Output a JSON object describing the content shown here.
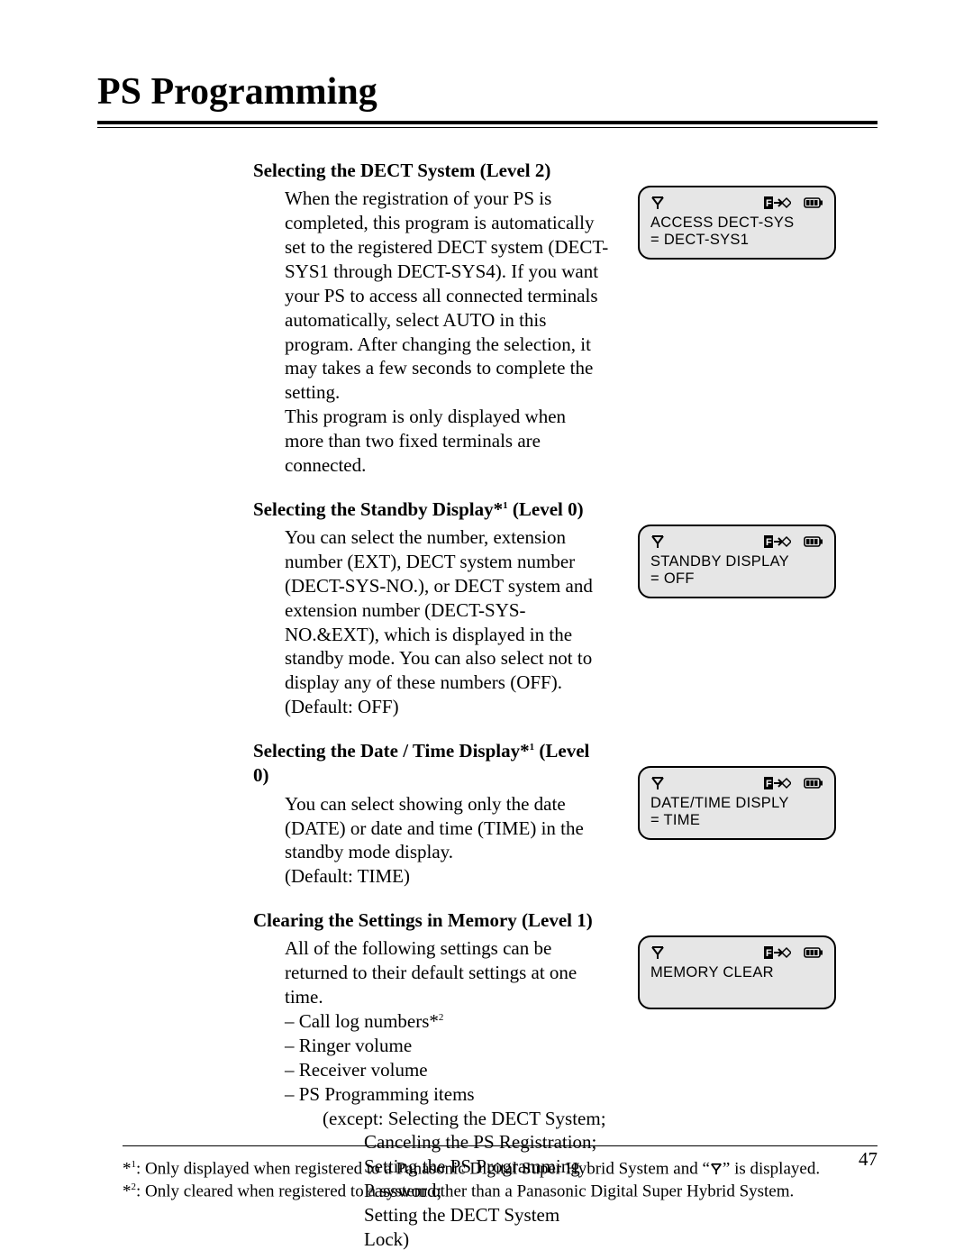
{
  "page": {
    "title": "PS Programming",
    "number": "47"
  },
  "sections": [
    {
      "heading_pre": "Selecting the DECT System (Level 2)",
      "heading_sup": "",
      "heading_post": "",
      "body_html": "When the registration of your PS is completed, this program is automatically set to the registered DECT system (DECT-SYS1 through DECT-SYS4).  If you want your PS to access all connected terminals automatically, select AUTO in this program.  After changing the selection, it may takes a few seconds to complete the setting.<br>This program is only displayed when more than two fixed terminals are connected.",
      "lcd": {
        "line1": "ACCESS DECT-SYS",
        "line2": "= DECT-SYS1"
      }
    },
    {
      "heading_pre": "Selecting the Standby Display*",
      "heading_sup": "1",
      "heading_post": " (Level 0)",
      "body_html": "You can select the number, extension number (EXT), DECT system number (DECT-SYS-NO.), or DECT system and extension number (DECT-SYS-NO.&EXT), which is displayed in the standby mode.  You can also select not to display any of these numbers (OFF).<br>(Default: OFF)",
      "lcd": {
        "line1": "STANDBY DISPLAY",
        "line2": "= OFF"
      }
    },
    {
      "heading_pre": "Selecting the Date / Time Display*",
      "heading_sup": "1",
      "heading_post": " (Level 0)",
      "body_html": "You can select showing only the date (DATE) or date and time (TIME) in the standby mode display.<br>(Default: TIME)",
      "lcd": {
        "line1": "DATE/TIME DISPLY",
        "line2": "= TIME"
      }
    },
    {
      "heading_pre": "Clearing the Settings in Memory (Level 1)",
      "heading_sup": "",
      "heading_post": "",
      "body_html": "All of the following settings can be returned to their default settings at one time.<ul><li>Call log numbers*<span class=\"sup\">2</span></li><li>Ringer volume</li><li>Receiver volume</li><li>PS Programming items</li></ul><div class=\"except-block\">(except: Selecting the DECT System;</div><div class=\"except-sub\">Canceling the PS Registration;</div><div class=\"except-sub\">Setting the PS Programming Password;</div><div class=\"except-sub\">Setting the DECT System Lock)</div>",
      "lcd": {
        "line1": "MEMORY CLEAR",
        "line2": ""
      }
    }
  ],
  "footnotes": {
    "fn1_pre": "*",
    "fn1_sup": "1",
    "fn1_text_a": ": Only displayed when registered to a Panasonic Digital Super Hybrid System and “",
    "fn1_text_b": "” is displayed.",
    "fn2_pre": "*",
    "fn2_sup": "2",
    "fn2_text": ": Only cleared when registered to a system other than a Panasonic Digital Super Hybrid System."
  },
  "icons": {
    "antenna": "antenna-icon",
    "f_arrow": "function-arrow-icon",
    "battery": "battery-icon"
  },
  "colors": {
    "text": "#000000",
    "background": "#ffffff",
    "lcd_bg": "#e6e6e6"
  }
}
